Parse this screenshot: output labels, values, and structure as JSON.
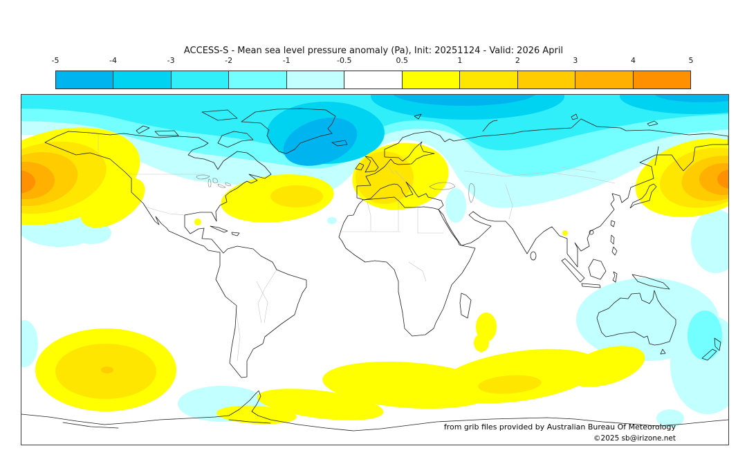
{
  "title": "ACCESS-S - Mean sea level pressure anomaly (Pa), Init: 20251124 - Valid: 2026 April",
  "colorbar": {
    "tick_labels": [
      "-5",
      "-4",
      "-3",
      "-2",
      "-1",
      "-0.5",
      "0.5",
      "1",
      "2",
      "3",
      "4",
      "5"
    ],
    "segment_colors": [
      "#00B4F0",
      "#00D2F2",
      "#30EFF8",
      "#73FFFF",
      "#C2FFFF",
      "#FFFFFF",
      "#FFFF00",
      "#FFE600",
      "#FFCC00",
      "#FFB000",
      "#FF9100"
    ],
    "units": "Pa"
  },
  "map": {
    "attribution_line1": "from grib files provided by Australian Bureau Of Meteorology",
    "attribution_line2": "©2025 sb@irizone.net"
  },
  "chart_data": {
    "type": "heatmap",
    "title": "ACCESS-S - Mean sea level pressure anomaly (Pa), Init: 20251124 - Valid: 2026 April",
    "model": "ACCESS-S",
    "variable": "Mean sea level pressure anomaly",
    "units": "Pa",
    "init_date": "20251124",
    "valid_period": "2026 April",
    "projection": "equirectangular world map, lon -180..180 left to right, lat 90N top to 90S bottom",
    "colorbar_ticks": [
      -5,
      -4,
      -3,
      -2,
      -1,
      -0.5,
      0.5,
      1,
      2,
      3,
      4,
      5
    ],
    "colorbar_colors": [
      "#00B4F0",
      "#00D2F2",
      "#30EFF8",
      "#73FFFF",
      "#C2FFFF",
      "#FFFFFF",
      "#FFFF00",
      "#FFE600",
      "#FFCC00",
      "#FFB000",
      "#FF9100"
    ],
    "legend_position": "horizontal bar above map",
    "anomaly_regions": [
      {
        "region": "Arctic and high northern latitudes (band across top of map)",
        "sign": "negative",
        "approx_peak_Pa": -4,
        "peak_area": "southeast Greenland / Iceland and central Arctic Ocean"
      },
      {
        "region": "Gulf of Alaska / Bering Sea, northeast Pacific (left edge)",
        "sign": "positive",
        "approx_peak_Pa": 5
      },
      {
        "region": "Northwest Pacific east of Japan / Kamchatka (right edge)",
        "sign": "positive",
        "approx_peak_Pa": 4
      },
      {
        "region": "Central and western Europe",
        "sign": "positive",
        "approx_peak_Pa": 2
      },
      {
        "region": "Western North Atlantic off US east coast",
        "sign": "positive",
        "approx_peak_Pa": 2
      },
      {
        "region": "Subtropical South Pacific",
        "sign": "positive",
        "approx_peak_Pa": 3
      },
      {
        "region": "Southern Ocean band, south Indian sector toward Antarctica",
        "sign": "positive",
        "approx_peak_Pa": 2
      },
      {
        "region": "Ocean south of Madagascar",
        "sign": "positive",
        "approx_peak_Pa": 1
      },
      {
        "region": "Australia, Coral Sea, Tasman Sea and New Zealand",
        "sign": "negative",
        "approx_peak_Pa": -2
      },
      {
        "region": "Antarctic Peninsula / Bellingshausen Sea",
        "sign": "negative",
        "approx_peak_Pa": -1
      },
      {
        "region": "Subtropical eastern Pacific off Mexico",
        "sign": "negative",
        "approx_peak_Pa": -1
      },
      {
        "region": "Middle East / Caspian region",
        "sign": "negative",
        "approx_peak_Pa": -1
      },
      {
        "region": "Philippine Sea (right edge subtropics)",
        "sign": "negative",
        "approx_peak_Pa": -1
      },
      {
        "region": "Tropics and remaining oceans",
        "sign": "neutral",
        "approx_peak_Pa": 0
      }
    ]
  }
}
